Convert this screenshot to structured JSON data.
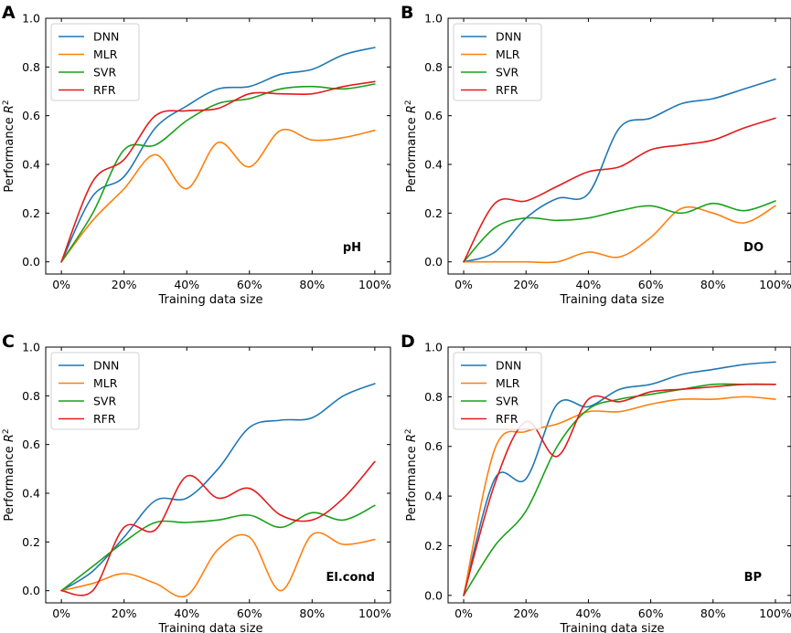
{
  "figure": {
    "series_colors": {
      "DNN": "#1f77b4",
      "MLR": "#ff7f0e",
      "SVR": "#1aa01a",
      "RFR": "#e41a1c"
    }
  },
  "chart_data": [
    {
      "panel": "A",
      "type": "line",
      "annotation": "pH",
      "xlabel": "Training data size",
      "ylabel": "Performance R",
      "ylabel_sup": "2",
      "x": [
        0,
        10,
        20,
        30,
        40,
        50,
        60,
        70,
        80,
        90,
        100
      ],
      "xticks": [
        0,
        20,
        40,
        60,
        80,
        100
      ],
      "xtick_labels": [
        "0%",
        "20%",
        "40%",
        "60%",
        "80%",
        "100%"
      ],
      "xlim": [
        -5,
        105
      ],
      "ylim": [
        -0.05,
        1.0
      ],
      "yticks": [
        0.0,
        0.2,
        0.4,
        0.6,
        0.8,
        1.0
      ],
      "ytick_labels": [
        "0.0",
        "0.2",
        "0.4",
        "0.6",
        "0.8",
        "1.0"
      ],
      "legend": [
        "DNN",
        "MLR",
        "SVR",
        "RFR"
      ],
      "series": [
        {
          "name": "DNN",
          "values": [
            0.0,
            0.27,
            0.35,
            0.55,
            0.64,
            0.71,
            0.72,
            0.77,
            0.79,
            0.85,
            0.88
          ]
        },
        {
          "name": "MLR",
          "values": [
            0.0,
            0.17,
            0.3,
            0.44,
            0.3,
            0.49,
            0.39,
            0.54,
            0.5,
            0.51,
            0.54
          ]
        },
        {
          "name": "SVR",
          "values": [
            0.0,
            0.2,
            0.46,
            0.48,
            0.58,
            0.65,
            0.67,
            0.71,
            0.72,
            0.71,
            0.73
          ]
        },
        {
          "name": "RFR",
          "values": [
            0.0,
            0.33,
            0.42,
            0.6,
            0.62,
            0.63,
            0.69,
            0.69,
            0.69,
            0.72,
            0.74
          ]
        }
      ]
    },
    {
      "panel": "B",
      "type": "line",
      "annotation": "DO",
      "xlabel": "Training data size",
      "ylabel": "Performance R",
      "ylabel_sup": "2",
      "x": [
        0,
        10,
        20,
        30,
        40,
        50,
        60,
        70,
        80,
        90,
        100
      ],
      "xticks": [
        0,
        20,
        40,
        60,
        80,
        100
      ],
      "xtick_labels": [
        "0%",
        "20%",
        "40%",
        "60%",
        "80%",
        "100%"
      ],
      "xlim": [
        -5,
        105
      ],
      "ylim": [
        -0.05,
        1.0
      ],
      "yticks": [
        0.0,
        0.2,
        0.4,
        0.6,
        0.8,
        1.0
      ],
      "ytick_labels": [
        "0.0",
        "0.2",
        "0.4",
        "0.6",
        "0.8",
        "1.0"
      ],
      "legend": [
        "DNN",
        "MLR",
        "SVR",
        "RFR"
      ],
      "series": [
        {
          "name": "DNN",
          "values": [
            0.0,
            0.04,
            0.18,
            0.26,
            0.28,
            0.55,
            0.59,
            0.65,
            0.67,
            0.71,
            0.75
          ]
        },
        {
          "name": "MLR",
          "values": [
            0.0,
            0.0,
            0.0,
            0.0,
            0.04,
            0.02,
            0.1,
            0.22,
            0.2,
            0.16,
            0.23
          ]
        },
        {
          "name": "SVR",
          "values": [
            0.0,
            0.14,
            0.18,
            0.17,
            0.18,
            0.21,
            0.23,
            0.2,
            0.24,
            0.21,
            0.25
          ]
        },
        {
          "name": "RFR",
          "values": [
            0.0,
            0.24,
            0.25,
            0.31,
            0.37,
            0.39,
            0.46,
            0.48,
            0.5,
            0.55,
            0.59
          ]
        }
      ]
    },
    {
      "panel": "C",
      "type": "line",
      "annotation": "El.cond",
      "xlabel": "Training data size",
      "ylabel": "Performance R",
      "ylabel_sup": "2",
      "x": [
        0,
        10,
        20,
        30,
        40,
        50,
        60,
        70,
        80,
        90,
        100
      ],
      "xticks": [
        0,
        20,
        40,
        60,
        80,
        100
      ],
      "xtick_labels": [
        "0%",
        "20%",
        "40%",
        "60%",
        "80%",
        "100%"
      ],
      "xlim": [
        -5,
        105
      ],
      "ylim": [
        -0.05,
        1.0
      ],
      "yticks": [
        0.0,
        0.2,
        0.4,
        0.6,
        0.8,
        1.0
      ],
      "ytick_labels": [
        "0.0",
        "0.2",
        "0.4",
        "0.6",
        "0.8",
        "1.0"
      ],
      "legend": [
        "DNN",
        "MLR",
        "SVR",
        "RFR"
      ],
      "series": [
        {
          "name": "DNN",
          "values": [
            0.0,
            0.08,
            0.22,
            0.37,
            0.38,
            0.5,
            0.67,
            0.7,
            0.71,
            0.8,
            0.85
          ]
        },
        {
          "name": "MLR",
          "values": [
            0.0,
            0.03,
            0.07,
            0.03,
            -0.02,
            0.17,
            0.22,
            0.0,
            0.23,
            0.19,
            0.21
          ]
        },
        {
          "name": "SVR",
          "values": [
            0.0,
            0.1,
            0.2,
            0.28,
            0.28,
            0.29,
            0.31,
            0.26,
            0.32,
            0.29,
            0.35
          ]
        },
        {
          "name": "RFR",
          "values": [
            0.0,
            0.0,
            0.26,
            0.25,
            0.47,
            0.38,
            0.42,
            0.31,
            0.29,
            0.38,
            0.53
          ]
        }
      ]
    },
    {
      "panel": "D",
      "type": "line",
      "annotation": "BP",
      "xlabel": "Training data size",
      "ylabel": "Performance R",
      "ylabel_sup": "2",
      "x": [
        0,
        10,
        20,
        30,
        40,
        50,
        60,
        70,
        80,
        90,
        100
      ],
      "xticks": [
        0,
        20,
        40,
        60,
        80,
        100
      ],
      "xtick_labels": [
        "0%",
        "20%",
        "40%",
        "60%",
        "80%",
        "100%"
      ],
      "xlim": [
        -5,
        105
      ],
      "ylim": [
        -0.03,
        1.0
      ],
      "yticks": [
        0.0,
        0.2,
        0.4,
        0.6,
        0.8,
        1.0
      ],
      "ytick_labels": [
        "0.0",
        "0.2",
        "0.4",
        "0.6",
        "0.8",
        "1.0"
      ],
      "legend": [
        "DNN",
        "MLR",
        "SVR",
        "RFR"
      ],
      "series": [
        {
          "name": "DNN",
          "values": [
            0.0,
            0.47,
            0.47,
            0.77,
            0.76,
            0.83,
            0.85,
            0.89,
            0.91,
            0.93,
            0.94
          ]
        },
        {
          "name": "MLR",
          "values": [
            0.0,
            0.59,
            0.66,
            0.69,
            0.74,
            0.74,
            0.77,
            0.79,
            0.79,
            0.8,
            0.79
          ]
        },
        {
          "name": "SVR",
          "values": [
            0.0,
            0.2,
            0.34,
            0.6,
            0.75,
            0.79,
            0.81,
            0.83,
            0.85,
            0.85,
            0.85
          ]
        },
        {
          "name": "RFR",
          "values": [
            0.0,
            0.45,
            0.7,
            0.56,
            0.79,
            0.78,
            0.82,
            0.83,
            0.84,
            0.85,
            0.85
          ]
        }
      ]
    }
  ]
}
